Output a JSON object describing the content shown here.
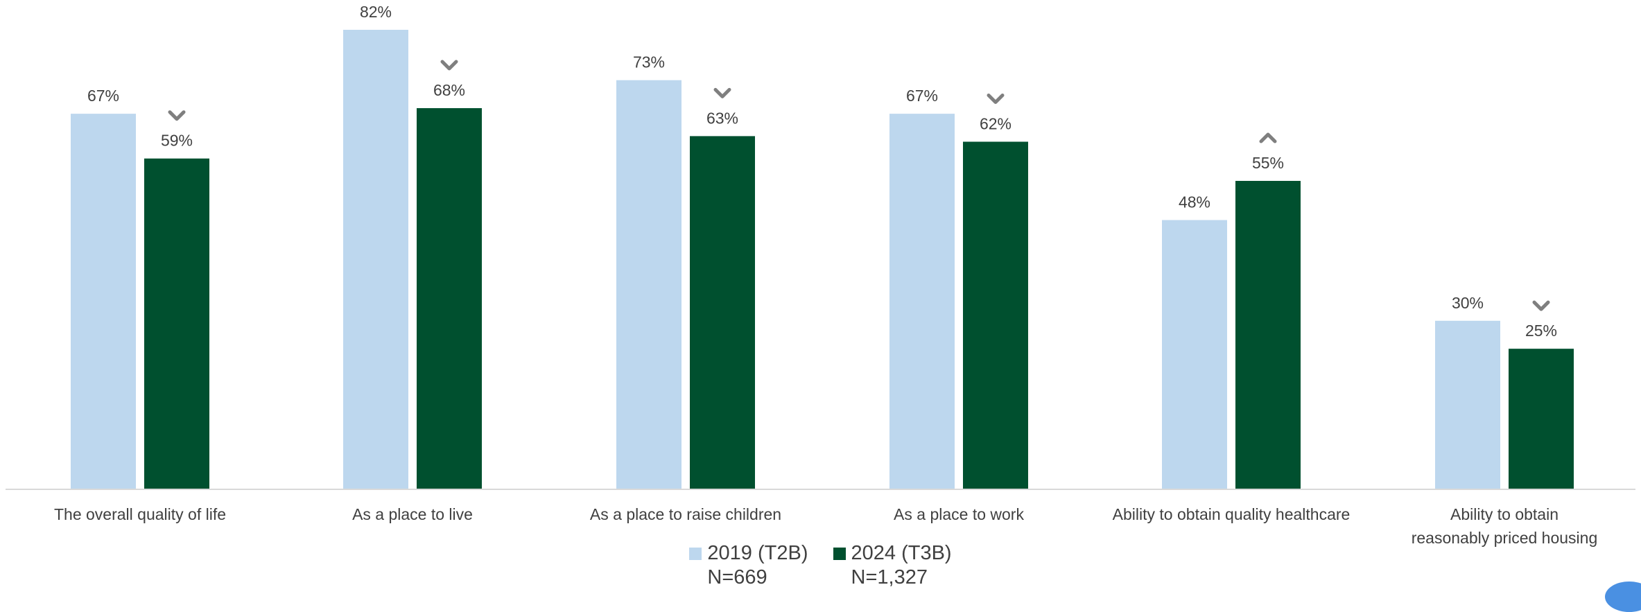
{
  "chart_data": {
    "type": "bar",
    "categories": [
      [
        "The overall quality of life"
      ],
      [
        "As a place to live"
      ],
      [
        "As a place to raise children"
      ],
      [
        "As a place to work"
      ],
      [
        "Ability to obtain quality healthcare"
      ],
      [
        "Ability to obtain",
        "reasonably priced housing"
      ]
    ],
    "series": [
      {
        "name": "2019 (T2B)",
        "n_label": "N=669",
        "color": "#bdd7ee",
        "values": [
          67,
          82,
          73,
          67,
          48,
          30
        ],
        "labels": [
          "67%",
          "82%",
          "73%",
          "67%",
          "48%",
          "30%"
        ]
      },
      {
        "name": "2024 (T3B)",
        "n_label": "N=1,327",
        "color": "#00502f",
        "values": [
          59,
          68,
          63,
          62,
          55,
          25
        ],
        "labels": [
          "59%",
          "68%",
          "63%",
          "62%",
          "55%",
          "25%"
        ],
        "change_arrows": [
          "down",
          "down",
          "down",
          "down",
          "up",
          "down"
        ]
      }
    ],
    "ylim": [
      0,
      100
    ],
    "grid": false,
    "legend_position": "bottom-center",
    "arrow_color": "#7f7f7f",
    "axis_color": "#d9d9d9",
    "text_color": "#404040"
  }
}
